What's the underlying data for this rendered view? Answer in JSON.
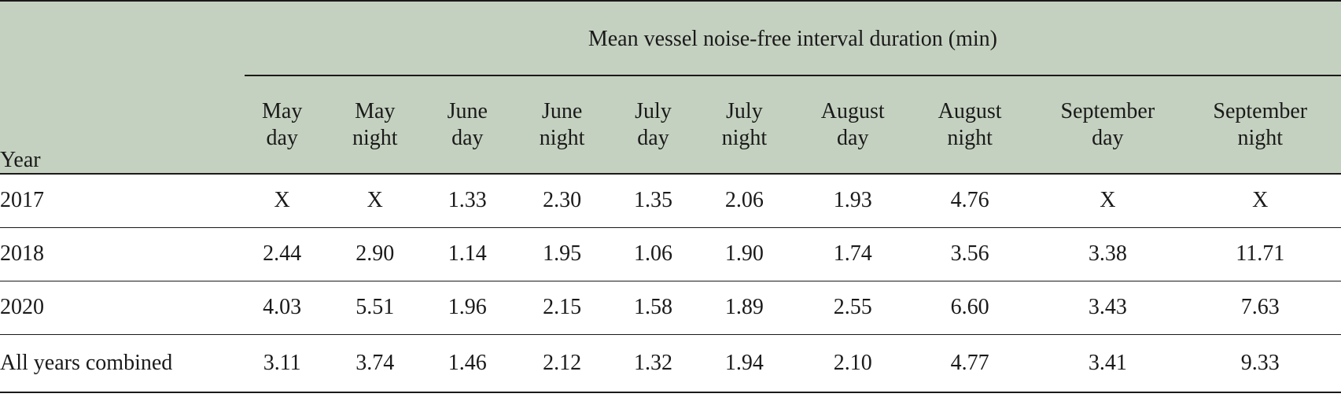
{
  "table": {
    "year_header": "Year",
    "group_header": "Mean vessel noise-free interval duration (min)",
    "columns": [
      {
        "line1": "May",
        "line2": "day"
      },
      {
        "line1": "May",
        "line2": "night"
      },
      {
        "line1": "June",
        "line2": "day"
      },
      {
        "line1": "June",
        "line2": "night"
      },
      {
        "line1": "July",
        "line2": "day"
      },
      {
        "line1": "July",
        "line2": "night"
      },
      {
        "line1": "August",
        "line2": "day"
      },
      {
        "line1": "August",
        "line2": "night"
      },
      {
        "line1": "September",
        "line2": "day"
      },
      {
        "line1": "September",
        "line2": "night"
      }
    ],
    "rows": [
      {
        "year": "2017",
        "values": [
          "X",
          "X",
          "1.33",
          "2.30",
          "1.35",
          "2.06",
          "1.93",
          "4.76",
          "X",
          "X"
        ]
      },
      {
        "year": "2018",
        "values": [
          "2.44",
          "2.90",
          "1.14",
          "1.95",
          "1.06",
          "1.90",
          "1.74",
          "3.56",
          "3.38",
          "11.71"
        ]
      },
      {
        "year": "2020",
        "values": [
          "4.03",
          "5.51",
          "1.96",
          "2.15",
          "1.58",
          "1.89",
          "2.55",
          "6.60",
          "3.43",
          "7.63"
        ]
      },
      {
        "year": "All years combined",
        "values": [
          "3.11",
          "3.74",
          "1.46",
          "2.12",
          "1.32",
          "1.94",
          "2.10",
          "4.77",
          "3.41",
          "9.33"
        ]
      }
    ]
  }
}
